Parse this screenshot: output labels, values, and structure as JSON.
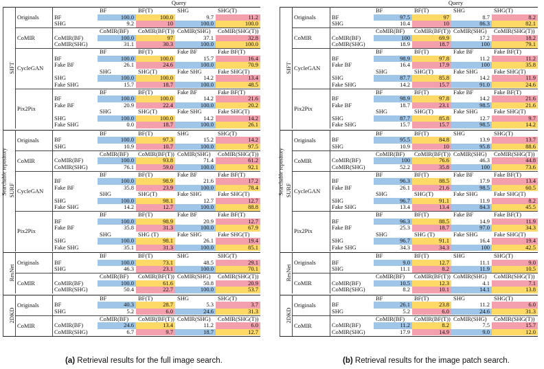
{
  "query_label": "Query",
  "searchable_label": "Searchable repository",
  "captions": [
    {
      "tag": "(a)",
      "text": "Retrieval results for the full image search."
    },
    {
      "tag": "(b)",
      "text": "Retrieval results for the image patch search."
    }
  ],
  "groups": [
    {
      "name": "SIFT",
      "methods": [
        {
          "name": "Originals",
          "blocks": [
            {
              "headers": [
                "BF",
                "BF(T)",
                "SHG",
                "SHG(T)"
              ],
              "rows": [
                [
                  "BF"
                ],
                [
                  "SHG"
                ]
              ]
            }
          ]
        },
        {
          "name": "CoMIR",
          "blocks": [
            {
              "headers": [
                "CoMIR(BF)",
                "CoMIR(BF(T))",
                "CoMIR(SHG)",
                "CoMIR(SHG(T))"
              ],
              "rows": [
                [
                  "CoMIR(BF)"
                ],
                [
                  "CoMIR(SHG)"
                ]
              ]
            }
          ]
        },
        {
          "name": "CycleGAN",
          "blocks": [
            {
              "headers": [
                "BF",
                "BF(T)",
                "Fake BF",
                "Fake BF(T)"
              ],
              "rows": [
                [
                  "BF"
                ],
                [
                  "Fake BF"
                ]
              ]
            },
            {
              "headers": [
                "SHG",
                "SHG(T)",
                "Fake SHG",
                "Fake SHG(T)"
              ],
              "rows": [
                [
                  "SHG"
                ],
                [
                  "Fake SHG"
                ]
              ]
            }
          ]
        },
        {
          "name": "Pix2Pix",
          "blocks": [
            {
              "headers": [
                "BF",
                "BF(T)",
                "Fake BF",
                "Fake BF(T)"
              ],
              "rows": [
                [
                  "BF"
                ],
                [
                  "Fake BF"
                ]
              ]
            },
            {
              "headers": [
                "SHG",
                "SHG(T)",
                "Fake SHG",
                "Fake SHG(T)"
              ],
              "rows": [
                [
                  "SHG"
                ],
                [
                  "Fake SHG"
                ]
              ]
            }
          ]
        }
      ]
    },
    {
      "name": "SURF",
      "methods": [
        {
          "name": "Originals",
          "blocks": [
            {
              "headers": [
                "BF",
                "BF(T)",
                "SHG",
                "SHG(T)"
              ],
              "rows": [
                [
                  "BF"
                ],
                [
                  "SHG"
                ]
              ]
            }
          ]
        },
        {
          "name": "CoMIR",
          "blocks": [
            {
              "headers": [
                "CoMIR(BF)",
                "CoMIR(BF(T))",
                "CoMIR(SHG)",
                "CoMIR(SHG(T))"
              ],
              "rows": [
                [
                  "CoMIR(BF)"
                ],
                [
                  "CoMIR(SHG)"
                ]
              ]
            }
          ]
        },
        {
          "name": "CycleGAN",
          "blocks": [
            {
              "headers": [
                "BF",
                "BF(T)",
                "Fake BF",
                "Fake BF(T)"
              ],
              "rows": [
                [
                  "BF"
                ],
                [
                  "Fake BF"
                ]
              ]
            },
            {
              "headers": [
                "SHG",
                "SHG(T)",
                "Fake SHG",
                "Fake SHG(T)"
              ],
              "rows": [
                [
                  "SHG"
                ],
                [
                  "Fake SHG"
                ]
              ]
            }
          ]
        },
        {
          "name": "Pix2Pix",
          "blocks": [
            {
              "headers": [
                "BF",
                "BF(T)",
                "Fake BF",
                "Fake BF(T)"
              ],
              "rows": [
                [
                  "BF"
                ],
                [
                  "Fake BF"
                ]
              ]
            },
            {
              "headers": [
                "SHG",
                "SHG (T)",
                "Fake SHG",
                "Fake SHG(T)"
              ],
              "rows": [
                [
                  "SHG"
                ],
                [
                  "Fake SHG"
                ]
              ]
            }
          ]
        }
      ]
    },
    {
      "name": "ResNet",
      "methods": [
        {
          "name": "Originals",
          "blocks": [
            {
              "headers": [
                "BF",
                "BF(T)",
                "SHG",
                "SHG(T)"
              ],
              "rows": [
                [
                  "BF"
                ],
                [
                  "SHG"
                ]
              ]
            }
          ]
        },
        {
          "name": "CoMIR",
          "blocks": [
            {
              "headers": [
                "CoMIR(BF)",
                "CoMIR(BF(T))",
                "CoMIR(SHG)",
                "CoMIR(SHG(T))"
              ],
              "rows": [
                [
                  "CoMIR(BF)"
                ],
                [
                  "CoMIR(SHG)"
                ]
              ]
            }
          ]
        }
      ]
    },
    {
      "name": "2DKD",
      "methods": [
        {
          "name": "Originals",
          "blocks": [
            {
              "headers": [
                "BF",
                "BF(T)",
                "SHG",
                "SHG(T)"
              ],
              "rows": [
                [
                  "BF"
                ],
                [
                  "SHG"
                ]
              ]
            }
          ]
        },
        {
          "name": "CoMIR",
          "blocks": [
            {
              "headers": [
                "CoMIR(BF)",
                "CoMIR(BF(T))",
                "CoMIR(SHG)",
                "CoMIR(SHG(T))"
              ],
              "rows": [
                [
                  "CoMIR(BF)"
                ],
                [
                  "CoMIR(SHG)"
                ]
              ]
            }
          ]
        }
      ]
    }
  ],
  "panels": [
    {
      "values": [
        [
          "100.0",
          "100.0",
          "9.7",
          "11.2"
        ],
        [
          "9.2",
          "10",
          "100.0",
          "100.0"
        ],
        [
          "100.0",
          "97",
          "37.1",
          "32.8"
        ],
        [
          "31.1",
          "30.3",
          "100.0",
          "100.0"
        ],
        [
          "100.0",
          "100.0",
          "15.7",
          "16.4"
        ],
        [
          "26.1",
          "24.6",
          "100.0",
          "70.9"
        ],
        [
          "100.0",
          "100.0",
          "14.2",
          "13.4"
        ],
        [
          "15.7",
          "18.7",
          "100.0",
          "48.5"
        ],
        [
          "100.0",
          "100.0",
          "14.2",
          "21.6"
        ],
        [
          "20.9",
          "22.4",
          "100.0",
          "20.2"
        ],
        [
          "100.0",
          "100.0",
          "14.2",
          "14.2"
        ],
        [
          "0.0",
          "18.7",
          "100.0",
          "26.1"
        ],
        [
          "100.0",
          "97.3",
          "15.2",
          "14.2"
        ],
        [
          "10.9",
          "10.7",
          "100.0",
          "97.5"
        ],
        [
          "100.0",
          "93.8",
          "71.4",
          "61.2"
        ],
        [
          "76.1",
          "59.0",
          "100.0",
          "92.1"
        ],
        [
          "100.0",
          "98.9",
          "21.6",
          "17.2"
        ],
        [
          "35.8",
          "23.9",
          "100.0",
          "78.4"
        ],
        [
          "100.0",
          "98.1",
          "12.7",
          "12.7"
        ],
        [
          "14.2",
          "12.7",
          "100.0",
          "88.8"
        ],
        [
          "100.0",
          "98.9",
          "20.9",
          "12.7"
        ],
        [
          "35.8",
          "31.3",
          "100.0",
          "67.9"
        ],
        [
          "100.0",
          "98.1",
          "26.1",
          "19.4"
        ],
        [
          "35.1",
          "31.3",
          "100.0",
          "85.1"
        ],
        [
          "100.0",
          "73.1",
          "48.5",
          "29.1"
        ],
        [
          "46.3",
          "23.1",
          "100.0",
          "70.1"
        ],
        [
          "100.0",
          "61.6",
          "50.8",
          "20.9"
        ],
        [
          "50.4",
          "22.7",
          "100.0",
          "53.7"
        ],
        [
          "40.3",
          "28.7",
          "5.3",
          "3.7"
        ],
        [
          "5.2",
          "6.0",
          "24.6",
          "31.3"
        ],
        [
          "24.6",
          "13.4",
          "11.2",
          "6.0"
        ],
        [
          "6.7",
          "9.7",
          "18.7",
          "12.7"
        ]
      ]
    },
    {
      "values": [
        [
          "97.5",
          "97",
          "8.7",
          "8.2"
        ],
        [
          "10.4",
          "10",
          "86.3",
          "82.1"
        ],
        [
          "100",
          "69.9",
          "17.2",
          "18.2"
        ],
        [
          "18.9",
          "18.7",
          "100",
          "79.1"
        ],
        [
          "98.9",
          "97.8",
          "11.2",
          "11.2"
        ],
        [
          "16.4",
          "17.9",
          "100",
          "35.8"
        ],
        [
          "87.7",
          "85.8",
          "14.2",
          "11.9"
        ],
        [
          "14.2",
          "15.7",
          "91.0",
          "24.6"
        ],
        [
          "98.9",
          "97.8",
          "14.2",
          "21.6"
        ],
        [
          "18.7",
          "23.1",
          "98.5",
          "21.6"
        ],
        [
          "87.7",
          "85.8",
          "12.7",
          "9.7"
        ],
        [
          "15.7",
          "15.7",
          "98.5",
          "14.2"
        ],
        [
          "95.5",
          "84.8",
          "13.9",
          "13.7"
        ],
        [
          "10.9",
          "10",
          "95.8",
          "88.6"
        ],
        [
          "100",
          "76.6",
          "46.3",
          "44.8"
        ],
        [
          "52.2",
          "35.8",
          "100",
          "73.6"
        ],
        [
          "96.3",
          "88.5",
          "17.9",
          "13.4"
        ],
        [
          "26.1",
          "21.6",
          "98.5",
          "60.5"
        ],
        [
          "96.7",
          "91.1",
          "11.9",
          "8.2"
        ],
        [
          "13.4",
          "13.4",
          "84.3",
          "45.5"
        ],
        [
          "96.3",
          "88.5",
          "14.9",
          "11.9"
        ],
        [
          "25.3",
          "18.7",
          "97.0",
          "34.3"
        ],
        [
          "96.7",
          "91.1",
          "16.4",
          "19.4"
        ],
        [
          "34.3",
          "34.3",
          "100",
          "42.5"
        ],
        [
          "9.0",
          "12.7",
          "11.1",
          "9.0"
        ],
        [
          "11.1",
          "8.2",
          "11.9",
          "10.5"
        ],
        [
          "10.5",
          "12.3",
          "4.1",
          "7.1"
        ],
        [
          "8.2",
          "10.1",
          "14.1",
          "13.8"
        ],
        [
          "26.1",
          "23.8",
          "11.2",
          "6.0"
        ],
        [
          "5.2",
          "6.0",
          "24.6",
          "31.3"
        ],
        [
          "11.2",
          "8.2",
          "7.5",
          "15.7"
        ],
        [
          "17.9",
          "14.9",
          "9.0",
          "12.0"
        ]
      ]
    }
  ],
  "colors": {
    "blue": "#9fc5e8",
    "orange": "#ffd966",
    "red": "#f4a0ac"
  }
}
